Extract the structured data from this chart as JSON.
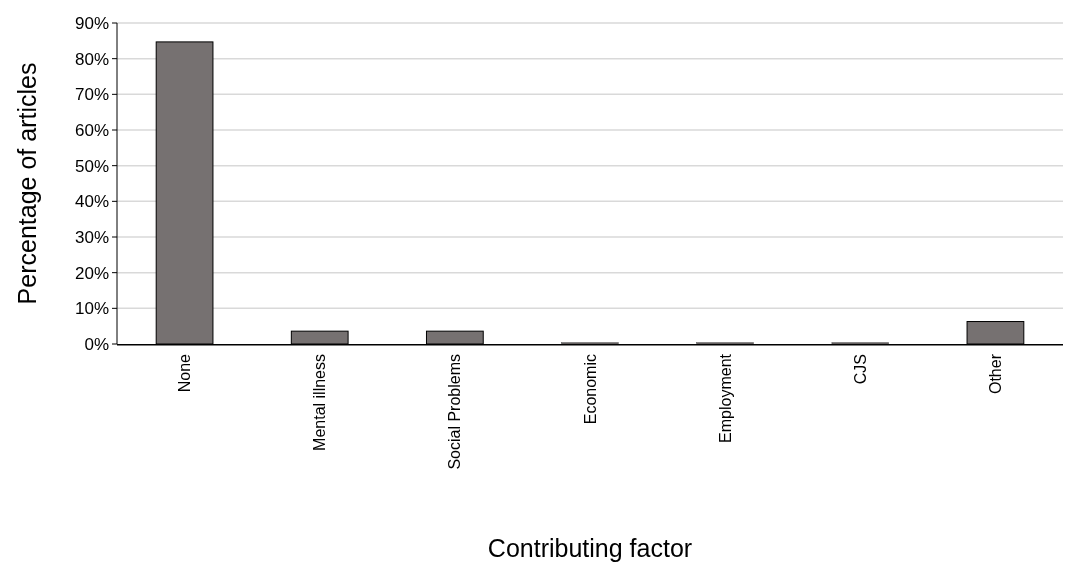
{
  "chart_data": {
    "type": "bar",
    "xlabel": "Contributing factor",
    "ylabel": "Percentage of articles",
    "categories": [
      "None",
      "Mental illness",
      "Social Problems",
      "Economic",
      "Employment",
      "CJS",
      "Other"
    ],
    "values": [
      84.7,
      3.6,
      3.6,
      0.4,
      0.4,
      0.4,
      6.3
    ],
    "color": "#767171",
    "ylim": [
      0,
      90
    ],
    "yticks": [
      {
        "value": 0,
        "label": "0%"
      },
      {
        "value": 10,
        "label": "10%"
      },
      {
        "value": 20,
        "label": "20%"
      },
      {
        "value": 30,
        "label": "30%"
      },
      {
        "value": 40,
        "label": "40%"
      },
      {
        "value": 50,
        "label": "50%"
      },
      {
        "value": 60,
        "label": "60%"
      },
      {
        "value": 70,
        "label": "70%"
      },
      {
        "value": 80,
        "label": "80%"
      },
      {
        "value": 90,
        "label": "90%"
      }
    ],
    "grid": "y"
  }
}
